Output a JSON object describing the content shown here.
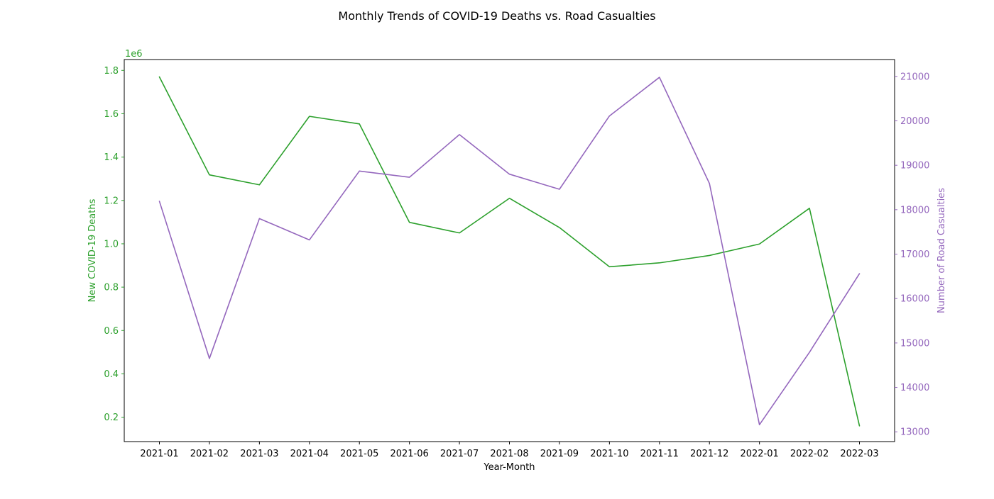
{
  "chart_data": {
    "type": "line",
    "title": "Monthly Trends of COVID-19 Deaths vs. Road Casualties",
    "xlabel": "Year-Month",
    "categories": [
      "2021-01",
      "2021-02",
      "2021-03",
      "2021-04",
      "2021-05",
      "2021-06",
      "2021-07",
      "2021-08",
      "2021-09",
      "2021-10",
      "2021-11",
      "2021-12",
      "2022-01",
      "2022-02",
      "2022-03"
    ],
    "left_axis": {
      "label": "New COVID-19 Deaths",
      "color": "#2ca02c",
      "multiplier_label": "1e6",
      "ylim": [
        0.0875,
        1.85
      ],
      "ticks": [
        0.2,
        0.4,
        0.6,
        0.8,
        1.0,
        1.2,
        1.4,
        1.6,
        1.8
      ],
      "tick_labels": [
        "0.2",
        "0.4",
        "0.6",
        "0.8",
        "1.0",
        "1.2",
        "1.4",
        "1.6",
        "1.8"
      ]
    },
    "right_axis": {
      "label": "Number of Road Casualties",
      "color": "#9467bd",
      "ylim": [
        12780,
        21380
      ],
      "ticks": [
        13000,
        14000,
        15000,
        16000,
        17000,
        18000,
        19000,
        20000,
        21000
      ],
      "tick_labels": [
        "13000",
        "14000",
        "15000",
        "16000",
        "17000",
        "18000",
        "19000",
        "20000",
        "21000"
      ]
    },
    "series": [
      {
        "axis": "left",
        "color": "#2ca02c",
        "values": [
          1.77,
          1.318,
          1.272,
          1.588,
          1.553,
          1.099,
          1.05,
          1.21,
          1.075,
          0.894,
          0.912,
          0.946,
          0.999,
          1.164,
          0.16
        ]
      },
      {
        "axis": "right",
        "color": "#9467bd",
        "values": [
          18190,
          14650,
          17800,
          17320,
          18870,
          18730,
          19690,
          18800,
          18460,
          20110,
          20980,
          18590,
          13160,
          14790,
          16560
        ]
      }
    ],
    "grid": false
  }
}
